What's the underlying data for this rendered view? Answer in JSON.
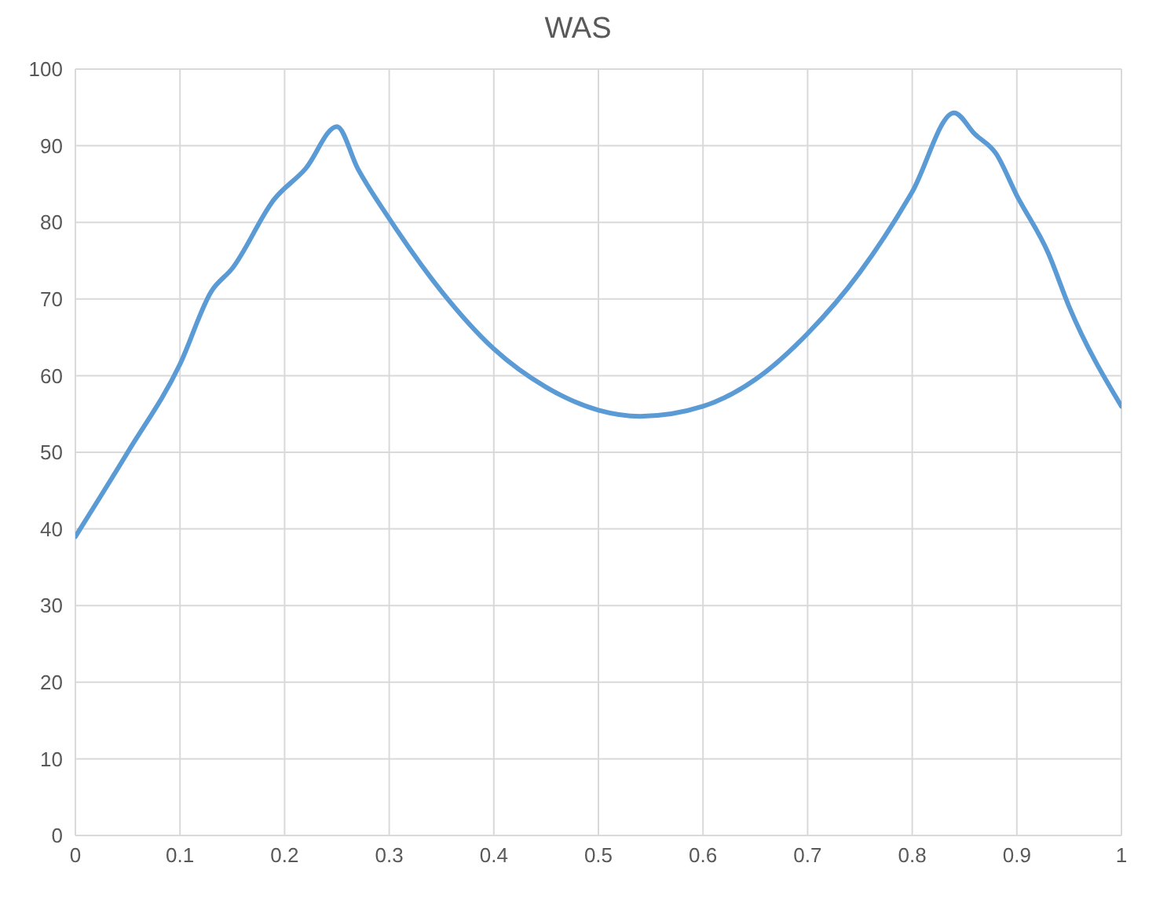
{
  "chart_data": {
    "type": "line",
    "title": "WAS",
    "x": [
      0,
      0.05,
      0.1,
      0.13,
      0.15,
      0.19,
      0.22,
      0.25,
      0.27,
      0.3,
      0.35,
      0.4,
      0.45,
      0.5,
      0.54,
      0.6,
      0.65,
      0.7,
      0.75,
      0.8,
      0.84,
      0.86,
      0.88,
      0.9,
      0.93,
      0.95,
      1
    ],
    "series": [
      {
        "color": "#5b9bd5",
        "values": [
          39,
          50,
          61.5,
          71,
          74,
          83,
          87,
          92.5,
          87,
          80.5,
          71,
          63.5,
          58.5,
          55.5,
          54.7,
          56,
          59.5,
          65.5,
          73.5,
          84,
          94.3,
          91.5,
          89,
          83.5,
          76,
          69,
          56
        ]
      }
    ],
    "xlim": [
      0,
      1
    ],
    "xticks": [
      0,
      0.1,
      0.2,
      0.3,
      0.4,
      0.5,
      0.6,
      0.7,
      0.8,
      0.9,
      1
    ],
    "ylim": [
      0,
      100
    ],
    "yticks": [
      0,
      10,
      20,
      30,
      40,
      50,
      60,
      70,
      80,
      90,
      100
    ],
    "grid": true,
    "legend": false,
    "marker": "none",
    "line_style": "solid"
  }
}
